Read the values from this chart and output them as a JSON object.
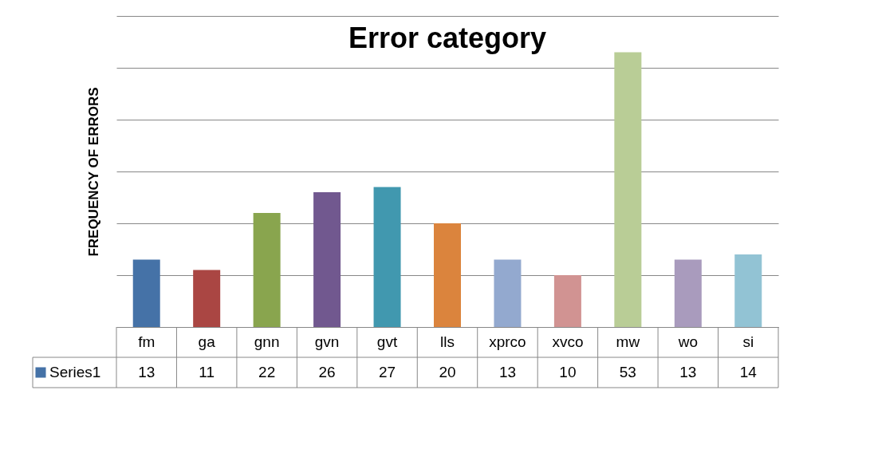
{
  "chart_data": {
    "type": "bar",
    "title": "Error category",
    "ylabel": "FREQUENCY OF ERRORS",
    "categories": [
      "fm",
      "ga",
      "gnn",
      "gvn",
      "gvt",
      "lls",
      "xprco",
      "xvco",
      "mw",
      "wo",
      "si"
    ],
    "series": [
      {
        "name": "Series1",
        "values": [
          13,
          11,
          22,
          26,
          27,
          20,
          13,
          10,
          53,
          13,
          14
        ]
      }
    ],
    "colors": [
      "#4572a7",
      "#aa4643",
      "#89a54e",
      "#71588f",
      "#4198af",
      "#db843d",
      "#93a9cf",
      "#d19392",
      "#b9cd96",
      "#a99bbd",
      "#92c3d4"
    ],
    "ylim": [
      0,
      60
    ],
    "yticks": [
      {
        "value": 0,
        "label": null
      },
      {
        "value": 10,
        "label": null
      },
      {
        "value": 20,
        "label": null
      },
      {
        "value": 30,
        "label": null
      },
      {
        "value": 40,
        "label": null
      },
      {
        "value": 50,
        "label": null
      },
      {
        "value": 60,
        "label": null
      }
    ],
    "tick_labels": "x",
    "grid": "y",
    "legend": "bottom",
    "data_labels": true
  }
}
